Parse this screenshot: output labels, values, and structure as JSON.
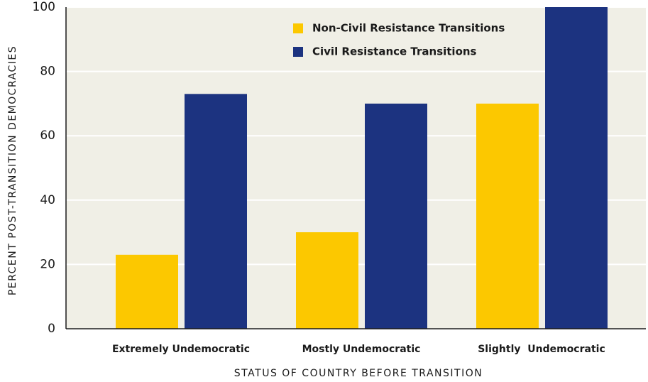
{
  "chart_data": {
    "type": "bar",
    "categories": [
      "Extremely Undemocratic",
      "Mostly Undemocratic",
      "Slightly  Undemocratic"
    ],
    "series": [
      {
        "name": "Non-Civil Resistance Transitions",
        "color": "#fcc800",
        "values": [
          23,
          30,
          70
        ]
      },
      {
        "name": "Civil Resistance Transitions",
        "color": "#1c3380",
        "values": [
          73,
          70,
          100
        ]
      }
    ],
    "ylabel": "PERCENT POST-TRANSITION DEMOCRACIES",
    "xlabel": "STATUS OF COUNTRY BEFORE TRANSITION",
    "ylim": [
      0,
      100
    ],
    "yticks": [
      0,
      20,
      40,
      60,
      80,
      100
    ],
    "grid": true,
    "legend": "top"
  }
}
